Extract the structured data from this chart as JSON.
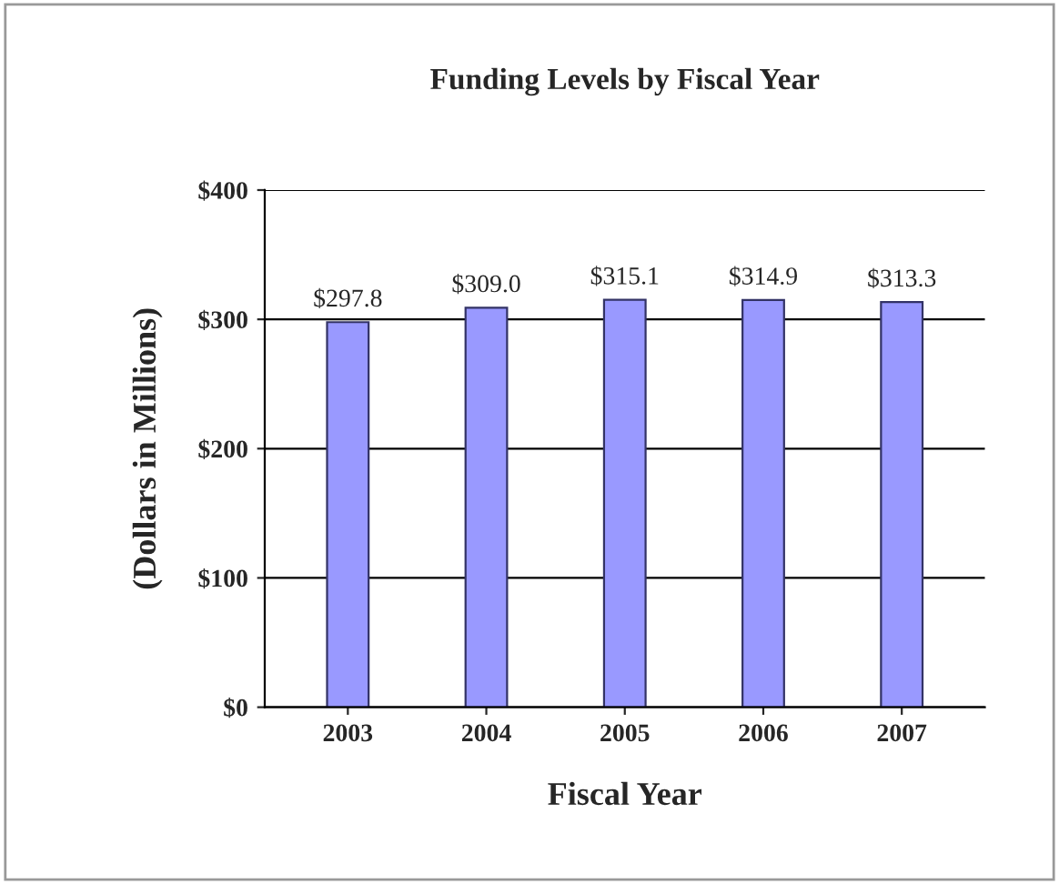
{
  "chart_data": {
    "type": "bar",
    "title": "Funding Levels by Fiscal Year",
    "xlabel": "Fiscal Year",
    "ylabel": "(Dollars in Millions)",
    "categories": [
      "2003",
      "2004",
      "2005",
      "2006",
      "2007"
    ],
    "values": [
      297.8,
      309.0,
      315.1,
      314.9,
      313.3
    ],
    "value_labels": [
      "$297.8",
      "$309.0",
      "$315.1",
      "$314.9",
      "$313.3"
    ],
    "color": "#9999ff",
    "ylim": [
      0,
      400
    ],
    "yticks": [
      {
        "value": 0,
        "label": "$0"
      },
      {
        "value": 100,
        "label": "$100"
      },
      {
        "value": 200,
        "label": "$200"
      },
      {
        "value": 300,
        "label": "$300"
      },
      {
        "value": 400,
        "label": "$400"
      }
    ],
    "grid": "y"
  }
}
